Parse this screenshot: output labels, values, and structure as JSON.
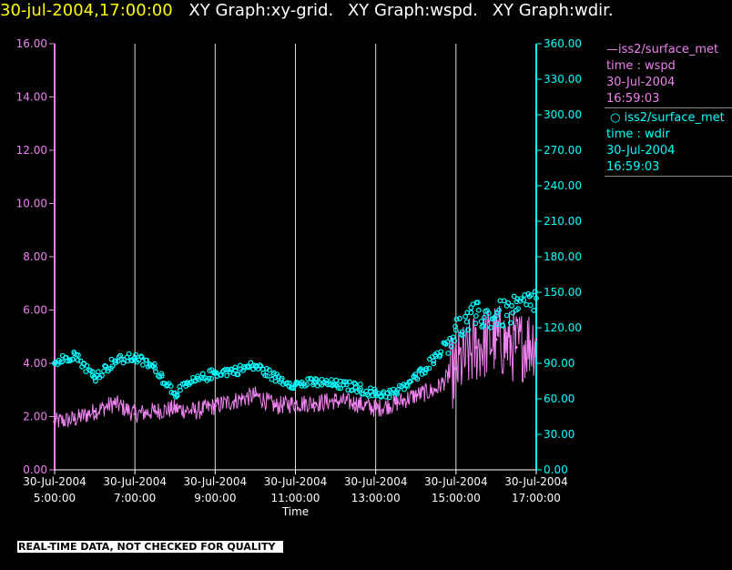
{
  "header": {
    "timestamp": "30-jul-2004,17:00:00",
    "panels": [
      "XY Graph:xy-grid.",
      "XY Graph:wspd.",
      "XY Graph:wdir."
    ]
  },
  "legend": {
    "wspd": {
      "source": "iss2/surface_met",
      "var": "time : wspd",
      "date": "30-Jul-2004",
      "time": "16:59:03",
      "color": "#ee82ee"
    },
    "wdir": {
      "source": "iss2/surface_met",
      "var": "time : wdir",
      "date": "30-Jul-2004",
      "time": "16:59:03",
      "color": "#00ffff"
    }
  },
  "notice": "REAL-TIME DATA, NOT CHECKED FOR QUALITY",
  "chart_data": {
    "type": "line",
    "xlabel": "Time",
    "xlim": [
      "2004-07-30 05:00",
      "2004-07-30 17:00"
    ],
    "x_ticks": [
      {
        "date": "30-Jul-2004",
        "time": "5:00:00"
      },
      {
        "date": "30-Jul-2004",
        "time": "7:00:00"
      },
      {
        "date": "30-Jul-2004",
        "time": "9:00:00"
      },
      {
        "date": "30-Jul-2004",
        "time": "11:00:00"
      },
      {
        "date": "30-Jul-2004",
        "time": "13:00:00"
      },
      {
        "date": "30-Jul-2004",
        "time": "15:00:00"
      },
      {
        "date": "30-Jul-2004",
        "time": "17:00:00"
      }
    ],
    "grid": "vertical",
    "legend_position": "right",
    "y_left": {
      "ylim": [
        0,
        16
      ],
      "ticks": [
        "0.00",
        "2.00",
        "4.00",
        "6.00",
        "8.00",
        "10.00",
        "12.00",
        "14.00",
        "16.00"
      ],
      "color": "#ee82ee"
    },
    "y_right": {
      "ylim": [
        0,
        360
      ],
      "ticks": [
        "0.00",
        "30.00",
        "60.00",
        "90.00",
        "120.00",
        "150.00",
        "180.00",
        "210.00",
        "240.00",
        "270.00",
        "300.00",
        "330.00",
        "360.00"
      ],
      "color": "#00ffff"
    },
    "series": [
      {
        "name": "iss2/surface_met time : wspd",
        "axis": "left",
        "style": "line",
        "color": "#ee82ee",
        "x": [
          "2004-07-30 05:00",
          "2004-07-30 05:30",
          "2004-07-30 06:00",
          "2004-07-30 06:30",
          "2004-07-30 07:00",
          "2004-07-30 07:30",
          "2004-07-30 08:00",
          "2004-07-30 08:30",
          "2004-07-30 09:00",
          "2004-07-30 09:30",
          "2004-07-30 10:00",
          "2004-07-30 10:30",
          "2004-07-30 11:00",
          "2004-07-30 11:30",
          "2004-07-30 12:00",
          "2004-07-30 12:30",
          "2004-07-30 13:00",
          "2004-07-30 13:30",
          "2004-07-30 14:00",
          "2004-07-30 14:30",
          "2004-07-30 15:00",
          "2004-07-30 15:30",
          "2004-07-30 16:00",
          "2004-07-30 16:30",
          "2004-07-30 17:00"
        ],
        "y": [
          1.8,
          1.9,
          2.2,
          2.5,
          2.1,
          2.2,
          2.3,
          2.2,
          2.4,
          2.6,
          2.8,
          2.4,
          2.5,
          2.5,
          2.6,
          2.5,
          2.3,
          2.5,
          2.8,
          3.0,
          3.8,
          4.6,
          4.9,
          4.6,
          4.9
        ]
      },
      {
        "name": "iss2/surface_met time : wdir",
        "axis": "right",
        "style": "markers",
        "color": "#00ffff",
        "x": [
          "2004-07-30 05:00",
          "2004-07-30 05:30",
          "2004-07-30 06:00",
          "2004-07-30 06:30",
          "2004-07-30 07:00",
          "2004-07-30 07:30",
          "2004-07-30 08:00",
          "2004-07-30 08:30",
          "2004-07-30 09:00",
          "2004-07-30 09:30",
          "2004-07-30 10:00",
          "2004-07-30 10:30",
          "2004-07-30 11:00",
          "2004-07-30 11:30",
          "2004-07-30 12:00",
          "2004-07-30 12:30",
          "2004-07-30 13:00",
          "2004-07-30 13:30",
          "2004-07-30 14:00",
          "2004-07-30 14:30",
          "2004-07-30 15:00",
          "2004-07-30 15:30",
          "2004-07-30 16:00",
          "2004-07-30 16:30",
          "2004-07-30 17:00"
        ],
        "y": [
          90,
          98,
          78,
          92,
          95,
          86,
          65,
          75,
          82,
          84,
          88,
          78,
          72,
          74,
          72,
          70,
          64,
          65,
          78,
          96,
          118,
          130,
          130,
          135,
          145
        ]
      }
    ]
  }
}
